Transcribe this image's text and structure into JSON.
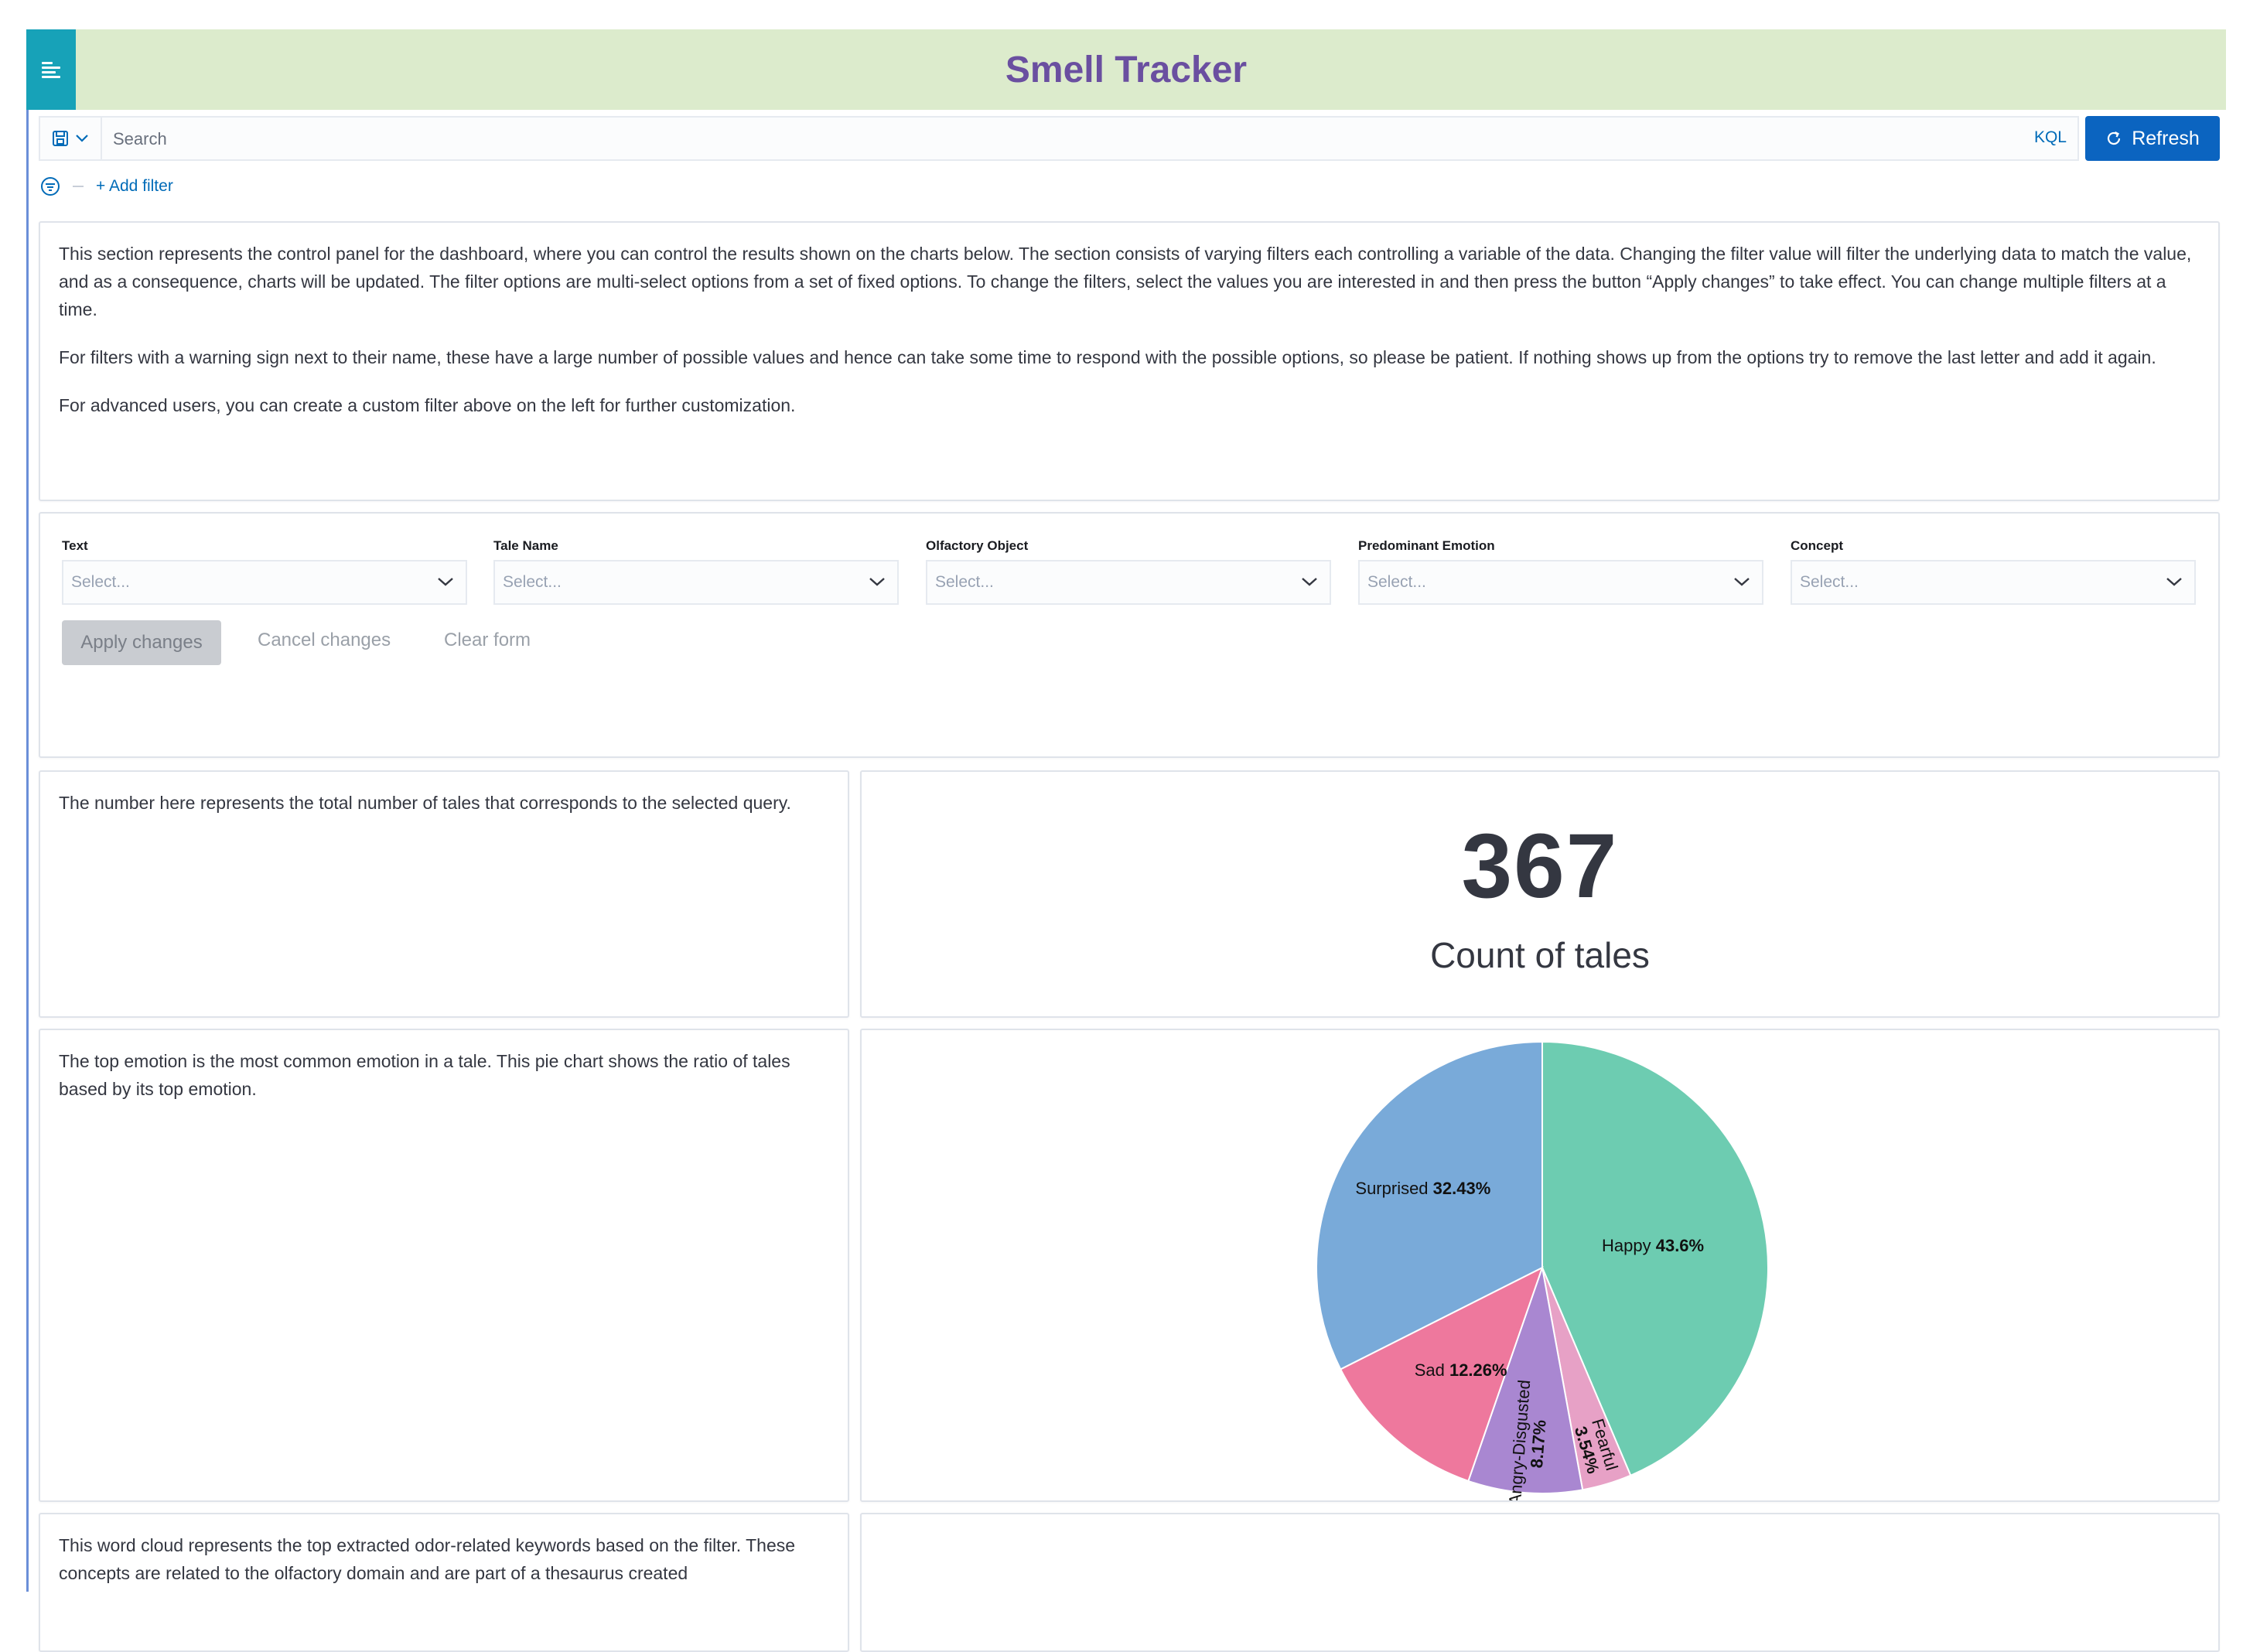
{
  "app": {
    "title": "Smell Tracker"
  },
  "query_bar": {
    "search_placeholder": "Search",
    "language": "KQL",
    "refresh_label": "Refresh",
    "add_filter_label": "+ Add filter"
  },
  "intro_panel": {
    "paragraphs": [
      "This section represents the control panel for the dashboard, where you can control the results shown on the charts below. The section consists of varying filters each controlling a variable of the data. Changing the filter value will filter the underlying data to match the value, and as a consequence, charts will be updated. The filter options are multi-select options from a set of fixed options. To change the filters, select the values you are interested in and then press the button “Apply changes” to take effect. You can change multiple filters at a time.",
      "For filters with a warning sign next to their name, these have a large number of possible values and hence can take some time to respond with the possible options, so please be patient. If nothing shows up from the options try to remove the last letter and add it again.",
      "For advanced users, you can create a custom filter above on the left for further customization."
    ]
  },
  "controls": {
    "filters": [
      {
        "label": "Text",
        "placeholder": "Select..."
      },
      {
        "label": "Tale Name",
        "placeholder": "Select..."
      },
      {
        "label": "Olfactory Object",
        "placeholder": "Select..."
      },
      {
        "label": "Predominant Emotion",
        "placeholder": "Select..."
      },
      {
        "label": "Concept",
        "placeholder": "Select..."
      }
    ],
    "apply_label": "Apply changes",
    "cancel_label": "Cancel changes",
    "clear_label": "Clear form"
  },
  "count_panel": {
    "description": "The number here represents the total number of tales that corresponds to the selected query.",
    "value": "367",
    "label": "Count of tales"
  },
  "emotion_panel": {
    "description": "The top emotion is the most common emotion in a tale. This pie chart shows the ratio of tales based by its top emotion."
  },
  "wordcloud_panel": {
    "description": "This word cloud represents the top extracted odor-related keywords based on the filter. These concepts are related to the olfactory domain and are part of a thesaurus created"
  },
  "chart_data": {
    "type": "pie",
    "slices": [
      {
        "name": "Happy",
        "value": 43.6,
        "label": "43.6%",
        "color": "#6dccb1"
      },
      {
        "name": "Fearful",
        "value": 3.54,
        "label": "3.54%",
        "color": "#e7a1c6"
      },
      {
        "name": "Angry-Disgusted",
        "value": 8.17,
        "label": "8.17%",
        "color": "#a987d1"
      },
      {
        "name": "Sad",
        "value": 12.26,
        "label": "12.26%",
        "color": "#ee789d"
      },
      {
        "name": "Surprised",
        "value": 32.43,
        "label": "32.43%",
        "color": "#79aad9"
      }
    ],
    "start": "12 o'clock",
    "direction": "clockwise"
  }
}
